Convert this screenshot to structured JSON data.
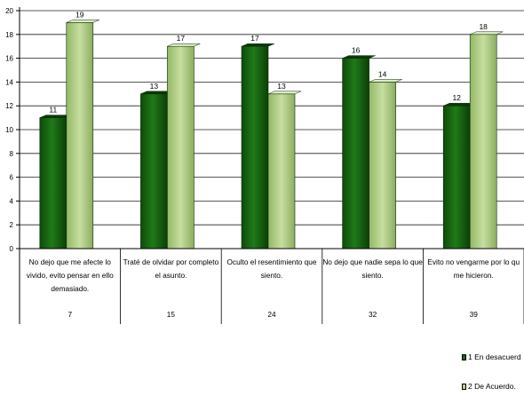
{
  "chart_data": {
    "type": "bar",
    "categories": [
      {
        "label": "No dejo que me afecte lo vivido, evito pensar en ello demasiado.",
        "lines": [
          "No dejo que me afecte lo",
          "vivido, evito pensar en ello",
          "demasiado."
        ],
        "code": "7"
      },
      {
        "label": "Traté de olvidar por completo el asunto.",
        "lines": [
          "Traté de olvidar por completo",
          "el asunto."
        ],
        "code": "15"
      },
      {
        "label": "Oculto el resentimiento que siento.",
        "lines": [
          "Oculto el resentimiento que",
          "siento."
        ],
        "code": "24"
      },
      {
        "label": "No dejo que nadie sepa lo que siento.",
        "lines": [
          "No dejo que nadie sepa lo que",
          "siento."
        ],
        "code": "32"
      },
      {
        "label": "Evito no vengarme por lo qu me hicieron.",
        "lines": [
          "Evito no vengarme por lo qu",
          "me hicieron."
        ],
        "code": "39"
      }
    ],
    "series": [
      {
        "name": "1 En desacuerd",
        "values": [
          11,
          13,
          17,
          16,
          12
        ],
        "color": "#1a6b14"
      },
      {
        "name": "2 De Acuerdo.",
        "values": [
          19,
          17,
          13,
          14,
          18
        ],
        "color": "#b7d48c"
      }
    ],
    "ylim": [
      0,
      20
    ],
    "yticks": [
      "0",
      "2",
      "4",
      "6",
      "8",
      "10",
      "12",
      "14",
      "16",
      "18",
      "20"
    ],
    "grid": true,
    "legend_position": "bottom-right",
    "title": "",
    "xlabel": "",
    "ylabel": ""
  }
}
